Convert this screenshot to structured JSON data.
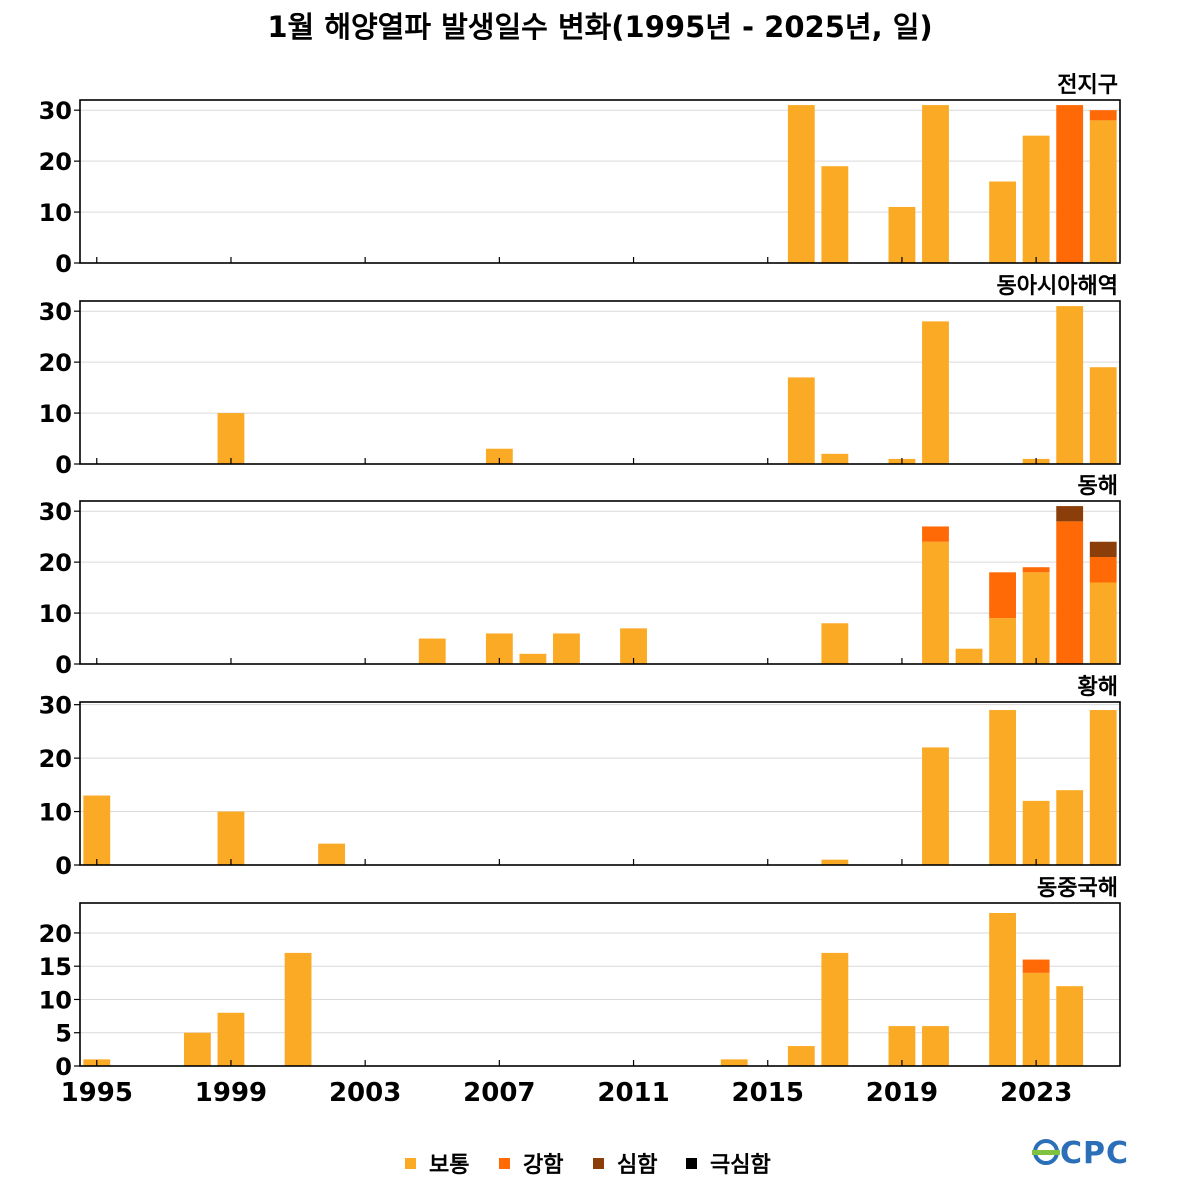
{
  "title": "1월 해양열파 발생일수 변화(1995년 - 2025년, 일)",
  "logo_text": "OCPC",
  "legend": [
    {
      "label": "보통",
      "color": "#fbaa25"
    },
    {
      "label": "강함",
      "color": "#ff6a06"
    },
    {
      "label": "심함",
      "color": "#8b3e0a"
    },
    {
      "label": "극심함",
      "color": "#000000"
    }
  ],
  "chart_data": [
    {
      "type": "bar",
      "stacked": true,
      "title": "전지구",
      "x": [
        2016,
        2017,
        2019,
        2020,
        2022,
        2023,
        2024,
        2025
      ],
      "series": [
        {
          "name": "보통",
          "values": [
            31,
            19,
            11,
            31,
            16,
            25,
            0,
            28
          ]
        },
        {
          "name": "강함",
          "values": [
            0,
            0,
            0,
            0,
            0,
            0,
            31,
            2
          ]
        }
      ],
      "xlim": [
        1994.5,
        2025.5
      ],
      "ylim": [
        0,
        32
      ],
      "yticks": [
        0,
        10,
        20,
        30
      ]
    },
    {
      "type": "bar",
      "stacked": true,
      "title": "동아시아해역",
      "x": [
        1999,
        2007,
        2016,
        2017,
        2019,
        2020,
        2023,
        2024,
        2025
      ],
      "series": [
        {
          "name": "보통",
          "values": [
            10,
            3,
            17,
            2,
            1,
            28,
            1,
            31,
            19
          ]
        }
      ],
      "xlim": [
        1994.5,
        2025.5
      ],
      "ylim": [
        0,
        32
      ],
      "yticks": [
        0,
        10,
        20,
        30
      ]
    },
    {
      "type": "bar",
      "stacked": true,
      "title": "동해",
      "x": [
        2005,
        2007,
        2008,
        2009,
        2011,
        2017,
        2020,
        2021,
        2022,
        2023,
        2024,
        2025
      ],
      "series": [
        {
          "name": "보통",
          "values": [
            5,
            6,
            2,
            6,
            7,
            8,
            24,
            3,
            9,
            18,
            0,
            16
          ]
        },
        {
          "name": "강함",
          "values": [
            0,
            0,
            0,
            0,
            0,
            0,
            3,
            0,
            9,
            1,
            28,
            5
          ]
        },
        {
          "name": "심함",
          "values": [
            0,
            0,
            0,
            0,
            0,
            0,
            0,
            0,
            0,
            0,
            3,
            3
          ]
        }
      ],
      "xlim": [
        1994.5,
        2025.5
      ],
      "ylim": [
        0,
        32
      ],
      "yticks": [
        0,
        10,
        20,
        30
      ]
    },
    {
      "type": "bar",
      "stacked": true,
      "title": "황해",
      "x": [
        1995,
        1999,
        2002,
        2017,
        2020,
        2022,
        2023,
        2024,
        2025
      ],
      "series": [
        {
          "name": "보통",
          "values": [
            13,
            10,
            4,
            1,
            22,
            29,
            12,
            14,
            29
          ]
        }
      ],
      "xlim": [
        1994.5,
        2025.5
      ],
      "ylim": [
        0,
        30.5
      ],
      "yticks": [
        0,
        10,
        20,
        30
      ]
    },
    {
      "type": "bar",
      "stacked": true,
      "title": "동중국해",
      "x": [
        1995,
        1998,
        1999,
        2001,
        2014,
        2016,
        2017,
        2019,
        2020,
        2022,
        2023,
        2024
      ],
      "series": [
        {
          "name": "보통",
          "values": [
            1,
            5,
            8,
            17,
            1,
            3,
            17,
            6,
            6,
            23,
            14,
            12
          ]
        },
        {
          "name": "강함",
          "values": [
            0,
            0,
            0,
            0,
            0,
            0,
            0,
            0,
            0,
            0,
            2,
            0
          ]
        }
      ],
      "xlim": [
        1994.5,
        2025.5
      ],
      "ylim": [
        0,
        24.5
      ],
      "yticks": [
        0,
        5,
        10,
        15,
        20
      ]
    }
  ],
  "x_tick_labels": [
    1995,
    1999,
    2003,
    2007,
    2011,
    2015,
    2019,
    2023
  ],
  "minor_ticks": [
    1995,
    1999,
    2003,
    2007,
    2011,
    2015,
    2019,
    2023
  ]
}
